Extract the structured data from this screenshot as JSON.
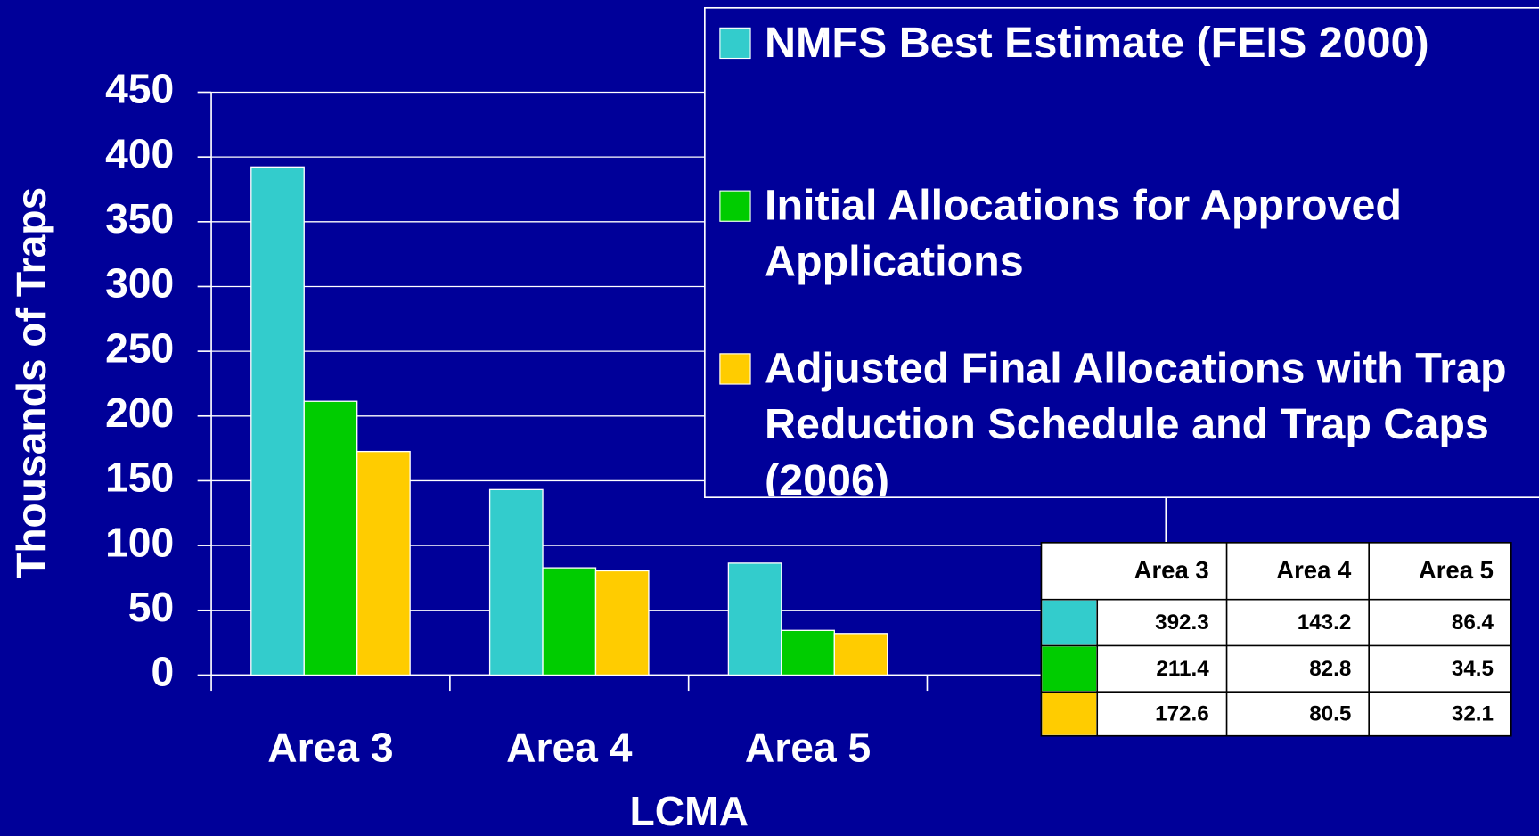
{
  "chart_data": {
    "type": "bar",
    "x_label": "LCMA",
    "y_label": "Thousands of Traps",
    "categories": [
      "Area 3",
      "Area 4",
      "Area 5",
      null
    ],
    "series": [
      {
        "name": "NMFS Best Estimate (FEIS 2000)",
        "color": "#33cccc",
        "values": [
          392.3,
          143.2,
          86.4,
          null
        ]
      },
      {
        "name": "Initial Allocations for Approved Applications",
        "color": "#00cc00",
        "values": [
          211.4,
          82.8,
          34.5,
          null
        ]
      },
      {
        "name": "Adjusted Final Allocations with Trap Reduction Schedule and Trap Caps (2006)",
        "color": "#ffcc00",
        "values": [
          172.6,
          80.5,
          32.1,
          null
        ]
      }
    ],
    "ylim": [
      0,
      450
    ],
    "yticks": [
      0,
      50,
      100,
      150,
      200,
      250,
      300,
      350,
      400,
      450
    ],
    "grid": true,
    "legend": "top-right",
    "data_table": true
  }
}
